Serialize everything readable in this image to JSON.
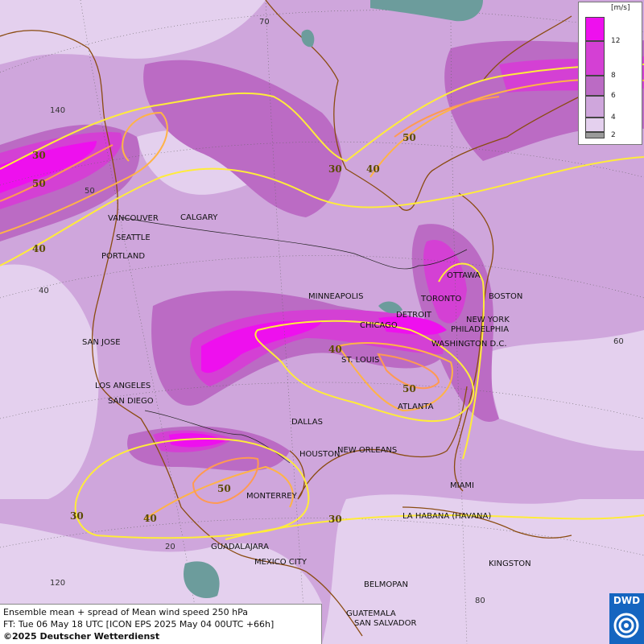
{
  "caption": {
    "line1": "Ensemble mean + spread of Mean wind speed 250 hPa",
    "line2": "FT: Tue 06 May 18 UTC [ICON EPS 2025 May 04 00UTC +66h]",
    "copyright": "©2025 Deutscher Wetterdienst"
  },
  "legend": {
    "unit": "[m/s]",
    "ticks": [
      "12",
      "8",
      "6",
      "4",
      "2"
    ],
    "colors": [
      "#ee10ee",
      "#d440d4",
      "#bb6bc4",
      "#cfa6dc",
      "#e4d0ee",
      "#9a9a9a"
    ]
  },
  "logo": {
    "text": "DWD"
  },
  "cities": [
    {
      "name": "VANCOUVER"
    },
    {
      "name": "CALGARY"
    },
    {
      "name": "SEATTLE"
    },
    {
      "name": "PORTLAND"
    },
    {
      "name": "MINNEAPOLIS"
    },
    {
      "name": "OTTAWA"
    },
    {
      "name": "TORONTO"
    },
    {
      "name": "BOSTON"
    },
    {
      "name": "DETROIT"
    },
    {
      "name": "NEW YORK"
    },
    {
      "name": "CHICAGO"
    },
    {
      "name": "PHILADELPHIA"
    },
    {
      "name": "WASHINGTON D.C."
    },
    {
      "name": "SAN JOSE"
    },
    {
      "name": "ST. LOUIS"
    },
    {
      "name": "LOS ANGELES"
    },
    {
      "name": "SAN DIEGO"
    },
    {
      "name": "ATLANTA"
    },
    {
      "name": "DALLAS"
    },
    {
      "name": "HOUSTON"
    },
    {
      "name": "NEW ORLEANS"
    },
    {
      "name": "MONTERREY"
    },
    {
      "name": "MIAMI"
    },
    {
      "name": "LA HABANA (HAVANA)"
    },
    {
      "name": "GUADALAJARA"
    },
    {
      "name": "MEXICO CITY"
    },
    {
      "name": "KINGSTON"
    },
    {
      "name": "BELMOPAN"
    },
    {
      "name": "GUATEMALA"
    },
    {
      "name": "SAN SALVADOR"
    }
  ],
  "grid_labels": [
    "70",
    "140",
    "50",
    "40",
    "60",
    "20",
    "120",
    "80"
  ],
  "isotach_labels": [
    "30",
    "50",
    "40",
    "30",
    "40",
    "50",
    "40",
    "50",
    "50",
    "30",
    "40",
    "30"
  ]
}
